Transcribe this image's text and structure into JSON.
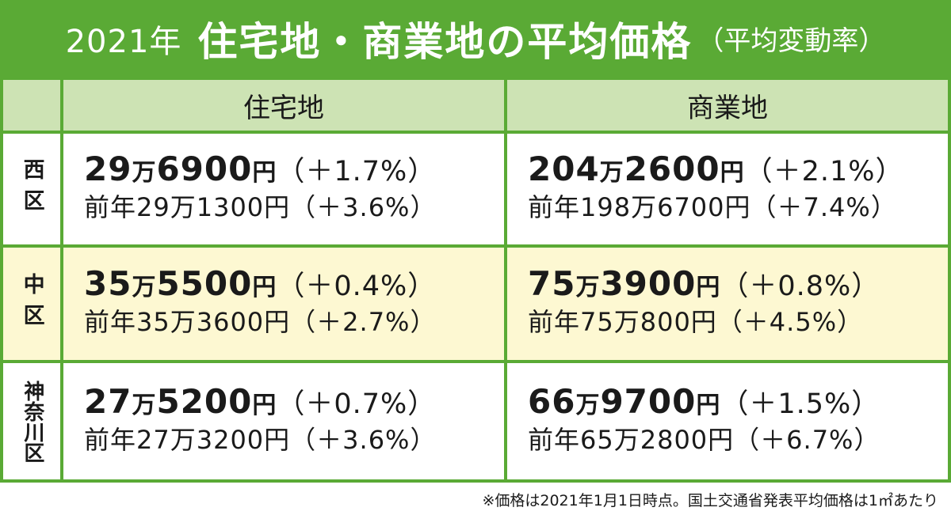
{
  "title": {
    "year": "2021年",
    "main": "住宅地・商業地の平均価格",
    "sub": "（平均変動率）"
  },
  "columns": [
    "住宅地",
    "商業地"
  ],
  "rows": [
    {
      "district": "西区",
      "residential": {
        "man": "29",
        "rest": "6900",
        "rate": "（＋1.7%）",
        "prev": "前年29万1300円（＋3.6%）"
      },
      "commercial": {
        "man": "204",
        "rest": "2600",
        "rate": "（＋2.1%）",
        "prev": "前年198万6700円（＋7.4%）"
      }
    },
    {
      "district": "中区",
      "residential": {
        "man": "35",
        "rest": "5500",
        "rate": "（＋0.4%）",
        "prev": "前年35万3600円（＋2.7%）"
      },
      "commercial": {
        "man": "75",
        "rest": "3900",
        "rate": "（＋0.8%）",
        "prev": "前年75万800円（＋4.5%）"
      }
    },
    {
      "district": "神奈川区",
      "residential": {
        "man": "27",
        "rest": "5200",
        "rate": "（＋0.7%）",
        "prev": "前年27万3200円（＋3.6%）"
      },
      "commercial": {
        "man": "66",
        "rest": "9700",
        "rate": "（＋1.5%）",
        "prev": "前年65万2800円（＋6.7%）"
      }
    }
  ],
  "units": {
    "man": "万",
    "yen": "円"
  },
  "note": "※価格は2021年1月1日時点。国土交通省発表平均価格は1㎡あたり",
  "colors": {
    "green": "#5aaa35",
    "header": "#cde3b4",
    "highlight": "#fdf8d2"
  }
}
